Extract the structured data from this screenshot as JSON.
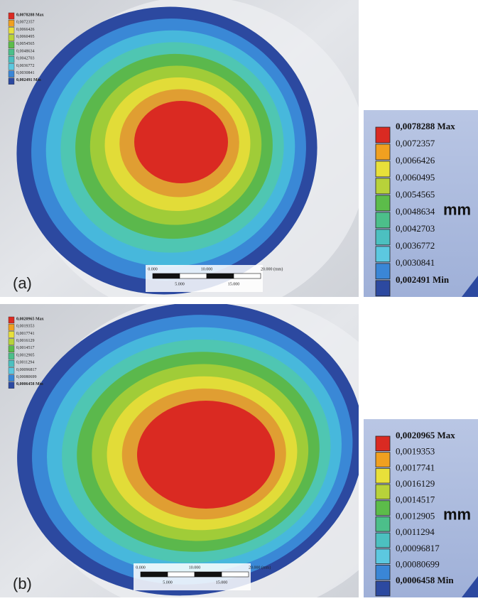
{
  "panels": [
    {
      "label": "(a)",
      "legend": [
        "0,0078288 Max",
        "0,0072357",
        "0,0066426",
        "0,0060495",
        "0,0054565",
        "0,0048634",
        "0,0042703",
        "0,0036772",
        "0,0030841",
        "0,002491 Min"
      ],
      "unit": "mm",
      "scale_top": [
        "0.000",
        "10.000",
        "20.000 (mm)"
      ],
      "scale_bottom": [
        "5.000",
        "15.000"
      ]
    },
    {
      "label": "(b)",
      "legend": [
        "0,0020965 Max",
        "0,0019353",
        "0,0017741",
        "0,0016129",
        "0,0014517",
        "0,0012905",
        "0,0011294",
        "0,00096817",
        "0,00080699",
        "0,0006458 Min"
      ],
      "unit": "mm",
      "scale_top": [
        "0.000",
        "10.000",
        "20.000 (mm)"
      ],
      "scale_bottom": [
        "5.000",
        "15.000"
      ]
    }
  ]
}
